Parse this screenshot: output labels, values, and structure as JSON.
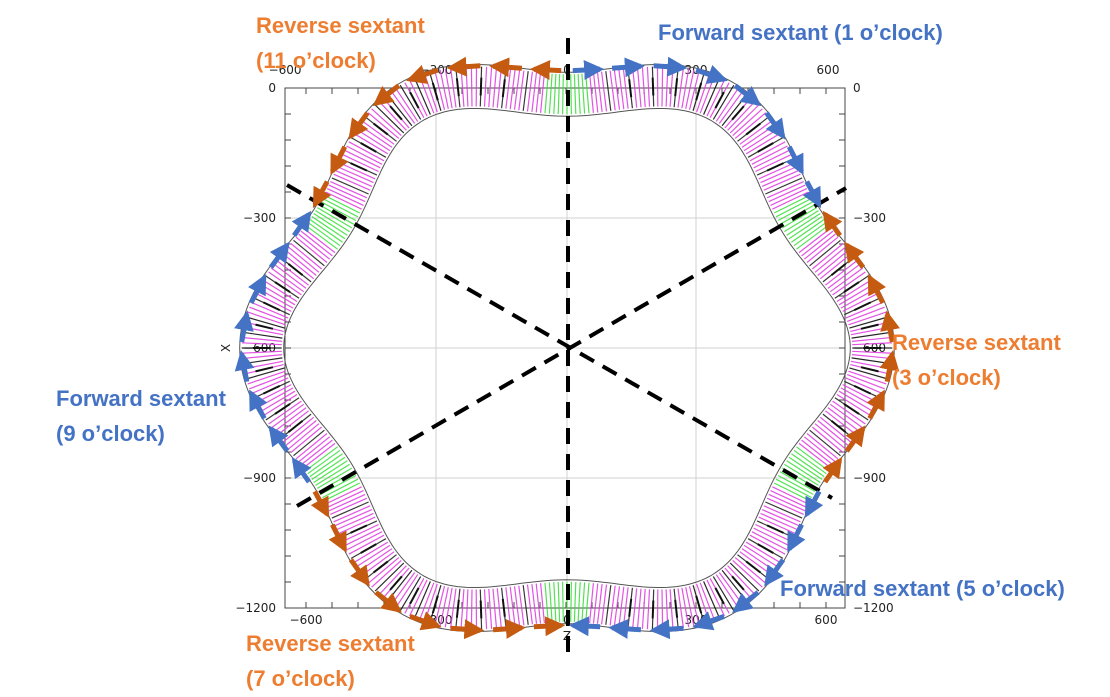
{
  "axes": {
    "x_ticks": [
      "−600",
      "−300",
      "0",
      "300",
      "600"
    ],
    "y_ticks": [
      "0",
      "−300",
      "−600",
      "−900",
      "−1200"
    ],
    "x_label": "Z",
    "y_label": "X",
    "x_range": [
      -650,
      650
    ],
    "y_range": [
      -1200,
      0
    ]
  },
  "labels": {
    "fwd_1": "Forward sextant (1 o’clock)",
    "rev_3_a": "Reverse sextant",
    "rev_3_b": "(3 o’clock)",
    "fwd_5": "Forward sextant (5 o’clock)",
    "rev_7_a": "Reverse sextant",
    "rev_7_b": "(7 o’clock)",
    "fwd_9_a": "Forward sextant",
    "fwd_9_b": "(9 o’clock)",
    "rev_11_a": "Reverse sextant",
    "rev_11_b": "(11 o’clock)"
  },
  "colors": {
    "forward": "#4472C4",
    "reverse": "#C55A11",
    "reverse_text": "#ED7D31",
    "magnet_magenta": "#E040E0",
    "magnet_green": "#40E040",
    "divider": "#000000"
  }
}
